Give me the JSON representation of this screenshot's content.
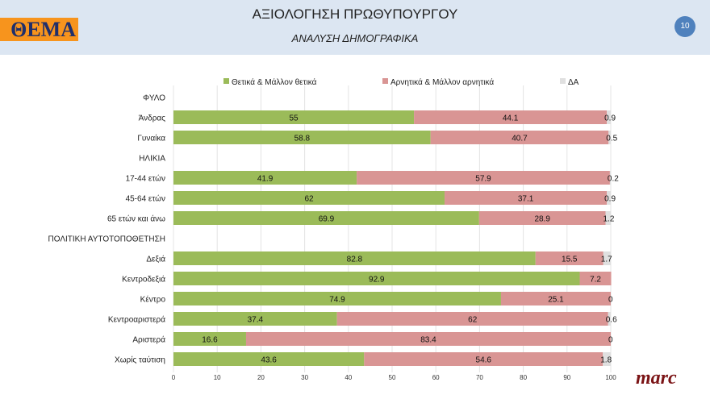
{
  "header": {
    "logo_text": "ΘΕΜΑ",
    "title": "ΑΞΙΟΛΟΓΗΣΗ ΠΡΩΘΥΠΟΥΡΓΟΥ",
    "subtitle": "ΑΝΑΛΥΣΗ ΔΗΜΟΓΡΑΦΙΚΑ",
    "page_number": "10"
  },
  "footer": {
    "brand": "marc"
  },
  "chart_data": {
    "type": "bar",
    "orientation": "horizontal",
    "stacked": true,
    "legend_position": "top",
    "grid": true,
    "xlim": [
      0,
      100
    ],
    "xticks": [
      "0",
      "10",
      "20",
      "30",
      "40",
      "50",
      "60",
      "70",
      "80",
      "90",
      "100"
    ],
    "categories": [
      "ΦΥΛΟ",
      "Άνδρας",
      "Γυναίκα",
      "ΗΛΙΚΙΑ",
      "17-44 ετών",
      "45-64 ετών",
      "65 ετών και άνω",
      "ΠΟΛΙΤΙΚΗ ΑΥΤΟΤΟΠΟΘΕΤΗΣΗ",
      "Δεξιά",
      "Κεντροδεξιά",
      "Κέντρο",
      "Κεντροαριστερά",
      "Αριστερά",
      "Χωρίς ταύτιση"
    ],
    "series": [
      {
        "name": "Θετικά & Μάλλον θετικά",
        "color": "#9bbb59",
        "values": [
          null,
          55,
          58.8,
          null,
          41.9,
          62,
          69.9,
          null,
          82.8,
          92.9,
          74.9,
          37.4,
          16.6,
          43.6
        ]
      },
      {
        "name": "Αρνητικά & Μάλλον αρνητικά",
        "color": "#d99594",
        "values": [
          null,
          44.1,
          40.7,
          null,
          57.9,
          37.1,
          28.9,
          null,
          15.5,
          7.2,
          25.1,
          62,
          83.4,
          54.6
        ]
      },
      {
        "name": "ΔΑ",
        "color": "#e0e0e0",
        "values": [
          null,
          0.9,
          0.5,
          null,
          0.2,
          0.9,
          1.2,
          null,
          1.7,
          null,
          0,
          0.6,
          0,
          1.8
        ]
      }
    ]
  }
}
